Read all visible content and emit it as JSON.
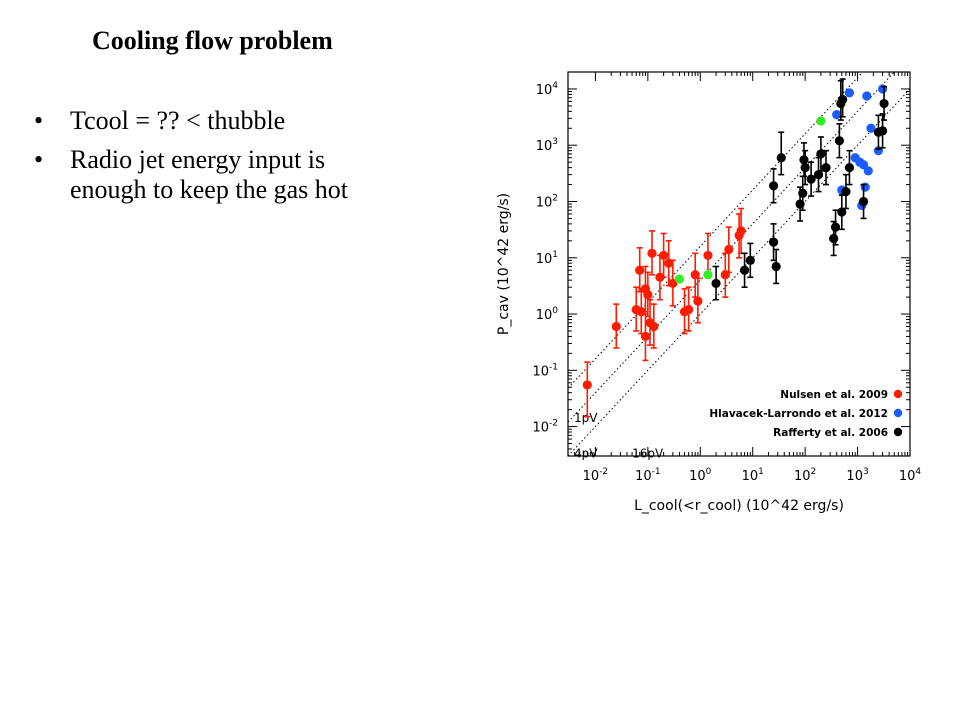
{
  "slide": {
    "title": "Cooling flow problem",
    "bullets": [
      "Tcool = ?? < thubble",
      "Radio jet energy input is enough to keep the gas hot"
    ]
  },
  "chart_data": {
    "type": "scatter",
    "xscale": "log",
    "yscale": "log",
    "xlim": [
      0.003,
      10000
    ],
    "ylim": [
      0.003,
      20000
    ],
    "xlabel": "L_cool(<r_cool) (10^42 erg/s)",
    "ylabel": "P_cav (10^42 erg/s)",
    "xticks": [
      "10^-2",
      "10^-1",
      "10^0",
      "10^1",
      "10^2",
      "10^3",
      "10^4"
    ],
    "yticks": [
      "10^-2",
      "10^-1",
      "10^0",
      "10^1",
      "10^2",
      "10^3",
      "10^4"
    ],
    "reference_lines": [
      {
        "label": "1pV",
        "factor": 1
      },
      {
        "label": "4pV",
        "factor": 4
      },
      {
        "label": "16pV",
        "factor": 16
      }
    ],
    "legend_position": "bottom-right",
    "series": [
      {
        "name": "Nulsen et al. 2009",
        "color": "#ff1a00",
        "points": [
          {
            "x": 0.007,
            "y": 0.055,
            "lo": 0.015,
            "hi": 0.14
          },
          {
            "x": 0.025,
            "y": 0.6,
            "lo": 0.25,
            "hi": 1.5
          },
          {
            "x": 0.06,
            "y": 1.2,
            "lo": 0.5,
            "hi": 3
          },
          {
            "x": 0.07,
            "y": 6,
            "lo": 2.5,
            "hi": 15
          },
          {
            "x": 0.075,
            "y": 1.1,
            "lo": 0.45,
            "hi": 2.8
          },
          {
            "x": 0.09,
            "y": 2.8,
            "lo": 1.1,
            "hi": 7
          },
          {
            "x": 0.1,
            "y": 2.2,
            "lo": 0.9,
            "hi": 5.5
          },
          {
            "x": 0.09,
            "y": 0.4,
            "lo": 0.15,
            "hi": 1
          },
          {
            "x": 0.11,
            "y": 0.7,
            "lo": 0.28,
            "hi": 1.8
          },
          {
            "x": 0.12,
            "y": 12,
            "lo": 5,
            "hi": 30
          },
          {
            "x": 0.13,
            "y": 0.6,
            "lo": 0.25,
            "hi": 1.5
          },
          {
            "x": 0.17,
            "y": 4.5,
            "lo": 1.8,
            "hi": 11
          },
          {
            "x": 0.2,
            "y": 11,
            "lo": 4.5,
            "hi": 27
          },
          {
            "x": 0.25,
            "y": 8,
            "lo": 3.2,
            "hi": 20
          },
          {
            "x": 0.3,
            "y": 3.5,
            "lo": 1.4,
            "hi": 9
          },
          {
            "x": 0.5,
            "y": 1.1,
            "lo": 0.45,
            "hi": 2.8
          },
          {
            "x": 0.6,
            "y": 1.2,
            "lo": 0.5,
            "hi": 3
          },
          {
            "x": 0.8,
            "y": 5,
            "lo": 2,
            "hi": 12
          },
          {
            "x": 0.9,
            "y": 1.7,
            "lo": 0.7,
            "hi": 4.3
          },
          {
            "x": 1.4,
            "y": 11,
            "lo": 4.5,
            "hi": 27
          },
          {
            "x": 3,
            "y": 5,
            "lo": 2,
            "hi": 12
          },
          {
            "x": 3.5,
            "y": 14,
            "lo": 5.5,
            "hi": 35
          },
          {
            "x": 5.5,
            "y": 25,
            "lo": 10,
            "hi": 60
          },
          {
            "x": 6,
            "y": 30,
            "lo": 12,
            "hi": 75
          }
        ]
      },
      {
        "name": "Hlavacek-Larrondo et al. 2012",
        "color": "#1a5cff",
        "points": [
          {
            "x": 400,
            "y": 3500
          },
          {
            "x": 700,
            "y": 8500
          },
          {
            "x": 1500,
            "y": 7500
          },
          {
            "x": 3000,
            "y": 10000
          },
          {
            "x": 1800,
            "y": 2000
          },
          {
            "x": 900,
            "y": 600
          },
          {
            "x": 1100,
            "y": 500
          },
          {
            "x": 1300,
            "y": 450
          },
          {
            "x": 1600,
            "y": 350
          },
          {
            "x": 500,
            "y": 160
          },
          {
            "x": 1400,
            "y": 180
          },
          {
            "x": 1200,
            "y": 85
          },
          {
            "x": 2500,
            "y": 800
          }
        ]
      },
      {
        "name": "Rafferty et al. 2006",
        "color": "#000000",
        "points": [
          {
            "x": 2,
            "y": 3.5,
            "lo": 1.8,
            "hi": 7
          },
          {
            "x": 7,
            "y": 6,
            "lo": 3,
            "hi": 12
          },
          {
            "x": 9,
            "y": 9,
            "lo": 4.5,
            "hi": 18
          },
          {
            "x": 25,
            "y": 19,
            "lo": 9,
            "hi": 40
          },
          {
            "x": 28,
            "y": 7,
            "lo": 3.5,
            "hi": 14
          },
          {
            "x": 25,
            "y": 190,
            "lo": 95,
            "hi": 380
          },
          {
            "x": 35,
            "y": 600,
            "lo": 300,
            "hi": 1700
          },
          {
            "x": 80,
            "y": 90,
            "lo": 45,
            "hi": 180
          },
          {
            "x": 90,
            "y": 140,
            "lo": 70,
            "hi": 280
          },
          {
            "x": 95,
            "y": 550,
            "lo": 280,
            "hi": 1100
          },
          {
            "x": 100,
            "y": 400,
            "lo": 200,
            "hi": 800
          },
          {
            "x": 130,
            "y": 250,
            "lo": 125,
            "hi": 500
          },
          {
            "x": 180,
            "y": 300,
            "lo": 150,
            "hi": 600
          },
          {
            "x": 200,
            "y": 700,
            "lo": 350,
            "hi": 1400
          },
          {
            "x": 250,
            "y": 400,
            "lo": 200,
            "hi": 800
          },
          {
            "x": 350,
            "y": 22,
            "lo": 11,
            "hi": 44
          },
          {
            "x": 380,
            "y": 35,
            "lo": 17,
            "hi": 70
          },
          {
            "x": 450,
            "y": 1200,
            "lo": 600,
            "hi": 2400
          },
          {
            "x": 480,
            "y": 5500,
            "lo": 2800,
            "hi": 14000
          },
          {
            "x": 520,
            "y": 6500,
            "lo": 3200,
            "hi": 15000
          },
          {
            "x": 500,
            "y": 65,
            "lo": 32,
            "hi": 130
          },
          {
            "x": 600,
            "y": 150,
            "lo": 75,
            "hi": 300
          },
          {
            "x": 700,
            "y": 400,
            "lo": 200,
            "hi": 800
          },
          {
            "x": 1300,
            "y": 100,
            "lo": 50,
            "hi": 200
          },
          {
            "x": 2500,
            "y": 1700,
            "lo": 850,
            "hi": 3400
          },
          {
            "x": 3000,
            "y": 1800,
            "lo": 900,
            "hi": 3600
          },
          {
            "x": 3200,
            "y": 5500,
            "lo": 2800,
            "hi": 11000
          }
        ]
      },
      {
        "name": "",
        "color": "#33ee22",
        "points": [
          {
            "x": 0.4,
            "y": 4.2
          },
          {
            "x": 1.4,
            "y": 5
          },
          {
            "x": 200,
            "y": 2700
          }
        ]
      }
    ]
  }
}
